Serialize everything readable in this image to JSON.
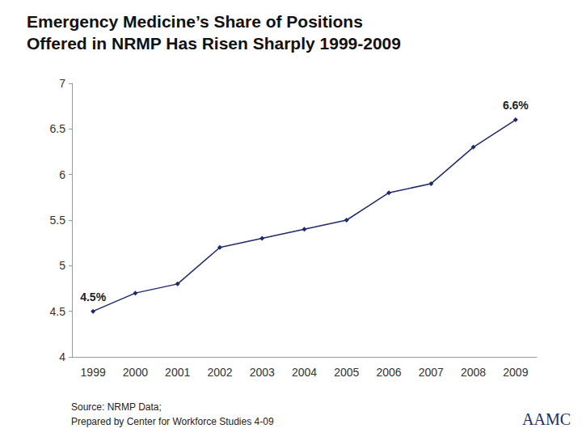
{
  "chart_data": {
    "type": "line",
    "title": [
      "Emergency Medicine’s Share of Positions",
      "Offered in NRMP Has Risen Sharply 1999-2009"
    ],
    "categories": [
      "1999",
      "2000",
      "2001",
      "2002",
      "2003",
      "2004",
      "2005",
      "2006",
      "2007",
      "2008",
      "2009"
    ],
    "values": [
      4.5,
      4.7,
      4.8,
      5.2,
      5.3,
      5.4,
      5.5,
      5.8,
      5.9,
      6.3,
      6.6
    ],
    "data_labels": true,
    "value_labels": [
      "4.5%",
      null,
      null,
      null,
      null,
      null,
      null,
      null,
      null,
      null,
      "6.6%"
    ],
    "color": "#1f2a6b",
    "marker": "diamond",
    "line_style": "solid",
    "ylim": [
      4,
      7
    ],
    "yticks": [
      4,
      4.5,
      5,
      5.5,
      6,
      6.5,
      7
    ],
    "grid": false,
    "source": [
      "Source: NRMP Data;",
      "Prepared by Center for Workforce Studies 4-09"
    ],
    "logo": "AAMC"
  }
}
